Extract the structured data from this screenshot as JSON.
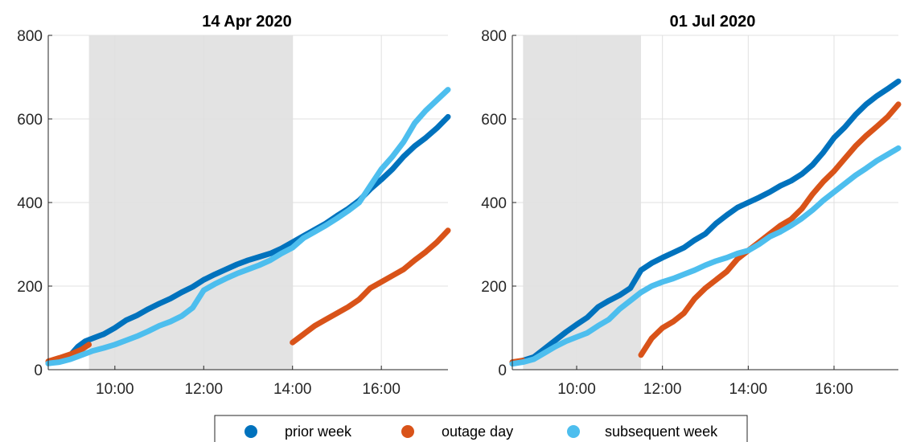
{
  "chart_data": [
    {
      "type": "line",
      "title": "14 Apr 2020",
      "xlabel": "",
      "ylabel": "",
      "x_unit": "time of day",
      "xlim": [
        "08:30",
        "17:30"
      ],
      "ylim": [
        0,
        800
      ],
      "xticks": [
        "10:00",
        "12:00",
        "14:00",
        "16:00"
      ],
      "yticks": [
        0,
        200,
        400,
        600,
        800
      ],
      "grid": true,
      "shaded_interval": [
        "09:25",
        "14:00"
      ],
      "series": [
        {
          "name": "prior week",
          "color": "#0072BD",
          "points": [
            [
              "08:30",
              15
            ],
            [
              "08:45",
              20
            ],
            [
              "09:00",
              35
            ],
            [
              "09:10",
              55
            ],
            [
              "09:20",
              68
            ],
            [
              "09:30",
              75
            ],
            [
              "09:45",
              85
            ],
            [
              "10:00",
              100
            ],
            [
              "10:15",
              118
            ],
            [
              "10:30",
              130
            ],
            [
              "10:45",
              145
            ],
            [
              "11:00",
              158
            ],
            [
              "11:15",
              170
            ],
            [
              "11:30",
              185
            ],
            [
              "11:45",
              198
            ],
            [
              "12:00",
              215
            ],
            [
              "12:15",
              228
            ],
            [
              "12:30",
              240
            ],
            [
              "12:45",
              252
            ],
            [
              "13:00",
              262
            ],
            [
              "13:15",
              270
            ],
            [
              "13:30",
              278
            ],
            [
              "13:45",
              290
            ],
            [
              "14:00",
              305
            ],
            [
              "14:15",
              320
            ],
            [
              "14:30",
              335
            ],
            [
              "14:45",
              350
            ],
            [
              "15:00",
              368
            ],
            [
              "15:15",
              385
            ],
            [
              "15:30",
              405
            ],
            [
              "15:45",
              432
            ],
            [
              "16:00",
              455
            ],
            [
              "16:15",
              480
            ],
            [
              "16:30",
              510
            ],
            [
              "16:45",
              535
            ],
            [
              "17:00",
              555
            ],
            [
              "17:15",
              578
            ],
            [
              "17:30",
              605
            ]
          ]
        },
        {
          "name": "outage day",
          "color": "#D95319",
          "segments": [
            [
              [
                "08:30",
                20
              ],
              [
                "08:45",
                28
              ],
              [
                "09:00",
                37
              ],
              [
                "09:15",
                48
              ],
              [
                "09:25",
                60
              ]
            ],
            [
              [
                "14:00",
                65
              ],
              [
                "14:15",
                85
              ],
              [
                "14:30",
                105
              ],
              [
                "14:45",
                120
              ],
              [
                "15:00",
                135
              ],
              [
                "15:15",
                150
              ],
              [
                "15:30",
                168
              ],
              [
                "15:45",
                195
              ],
              [
                "16:00",
                210
              ],
              [
                "16:15",
                225
              ],
              [
                "16:30",
                240
              ],
              [
                "16:45",
                262
              ],
              [
                "17:00",
                282
              ],
              [
                "17:15",
                305
              ],
              [
                "17:30",
                333
              ]
            ]
          ]
        },
        {
          "name": "subsequent week",
          "color": "#4DBEEE",
          "points": [
            [
              "08:30",
              15
            ],
            [
              "08:45",
              18
            ],
            [
              "09:00",
              25
            ],
            [
              "09:15",
              35
            ],
            [
              "09:30",
              45
            ],
            [
              "09:45",
              52
            ],
            [
              "10:00",
              60
            ],
            [
              "10:15",
              70
            ],
            [
              "10:30",
              80
            ],
            [
              "10:45",
              92
            ],
            [
              "11:00",
              105
            ],
            [
              "11:15",
              115
            ],
            [
              "11:30",
              128
            ],
            [
              "11:45",
              148
            ],
            [
              "12:00",
              190
            ],
            [
              "12:15",
              205
            ],
            [
              "12:30",
              218
            ],
            [
              "12:45",
              230
            ],
            [
              "13:00",
              240
            ],
            [
              "13:15",
              250
            ],
            [
              "13:30",
              262
            ],
            [
              "13:45",
              278
            ],
            [
              "14:00",
              292
            ],
            [
              "14:15",
              315
            ],
            [
              "14:30",
              330
            ],
            [
              "14:45",
              345
            ],
            [
              "15:00",
              362
            ],
            [
              "15:15",
              380
            ],
            [
              "15:30",
              400
            ],
            [
              "15:45",
              440
            ],
            [
              "16:00",
              480
            ],
            [
              "16:15",
              510
            ],
            [
              "16:30",
              545
            ],
            [
              "16:45",
              590
            ],
            [
              "17:00",
              620
            ],
            [
              "17:15",
              645
            ],
            [
              "17:30",
              670
            ]
          ]
        }
      ]
    },
    {
      "type": "line",
      "title": "01 Jul 2020",
      "xlabel": "",
      "ylabel": "",
      "x_unit": "time of day",
      "xlim": [
        "08:30",
        "17:30"
      ],
      "ylim": [
        0,
        800
      ],
      "xticks": [
        "10:00",
        "12:00",
        "14:00",
        "16:00"
      ],
      "yticks": [
        0,
        200,
        400,
        600,
        800
      ],
      "grid": true,
      "shaded_interval": [
        "08:45",
        "11:30"
      ],
      "series": [
        {
          "name": "prior week",
          "color": "#0072BD",
          "points": [
            [
              "08:30",
              15
            ],
            [
              "08:45",
              22
            ],
            [
              "09:00",
              30
            ],
            [
              "09:15",
              50
            ],
            [
              "09:30",
              70
            ],
            [
              "09:45",
              90
            ],
            [
              "10:00",
              108
            ],
            [
              "10:15",
              125
            ],
            [
              "10:30",
              150
            ],
            [
              "10:45",
              165
            ],
            [
              "11:00",
              178
            ],
            [
              "11:15",
              195
            ],
            [
              "11:30",
              238
            ],
            [
              "11:45",
              255
            ],
            [
              "12:00",
              268
            ],
            [
              "12:15",
              280
            ],
            [
              "12:30",
              292
            ],
            [
              "12:45",
              310
            ],
            [
              "13:00",
              325
            ],
            [
              "13:15",
              350
            ],
            [
              "13:30",
              370
            ],
            [
              "13:45",
              388
            ],
            [
              "14:00",
              400
            ],
            [
              "14:15",
              412
            ],
            [
              "14:30",
              425
            ],
            [
              "14:45",
              440
            ],
            [
              "15:00",
              452
            ],
            [
              "15:15",
              468
            ],
            [
              "15:30",
              490
            ],
            [
              "15:45",
              520
            ],
            [
              "16:00",
              555
            ],
            [
              "16:15",
              580
            ],
            [
              "16:30",
              610
            ],
            [
              "16:45",
              635
            ],
            [
              "17:00",
              655
            ],
            [
              "17:15",
              672
            ],
            [
              "17:30",
              690
            ]
          ]
        },
        {
          "name": "outage day",
          "color": "#D95319",
          "segments": [
            [
              [
                "08:30",
                18
              ],
              [
                "08:45",
                22
              ]
            ],
            [
              [
                "11:30",
                35
              ],
              [
                "11:45",
                75
              ],
              [
                "12:00",
                100
              ],
              [
                "12:15",
                115
              ],
              [
                "12:30",
                135
              ],
              [
                "12:45",
                170
              ],
              [
                "13:00",
                195
              ],
              [
                "13:15",
                215
              ],
              [
                "13:30",
                235
              ],
              [
                "13:45",
                265
              ],
              [
                "14:00",
                285
              ],
              [
                "14:15",
                305
              ],
              [
                "14:30",
                325
              ],
              [
                "14:45",
                345
              ],
              [
                "15:00",
                360
              ],
              [
                "15:15",
                385
              ],
              [
                "15:30",
                420
              ],
              [
                "15:45",
                450
              ],
              [
                "16:00",
                475
              ],
              [
                "16:15",
                505
              ],
              [
                "16:30",
                535
              ],
              [
                "16:45",
                560
              ],
              [
                "17:00",
                582
              ],
              [
                "17:15",
                605
              ],
              [
                "17:30",
                635
              ]
            ]
          ]
        },
        {
          "name": "subsequent week",
          "color": "#4DBEEE",
          "points": [
            [
              "08:30",
              14
            ],
            [
              "08:45",
              18
            ],
            [
              "09:00",
              25
            ],
            [
              "09:15",
              40
            ],
            [
              "09:30",
              55
            ],
            [
              "09:45",
              68
            ],
            [
              "10:00",
              78
            ],
            [
              "10:15",
              88
            ],
            [
              "10:30",
              105
            ],
            [
              "10:45",
              120
            ],
            [
              "11:00",
              145
            ],
            [
              "11:15",
              165
            ],
            [
              "11:30",
              185
            ],
            [
              "11:45",
              200
            ],
            [
              "12:00",
              210
            ],
            [
              "12:15",
              218
            ],
            [
              "12:30",
              228
            ],
            [
              "12:45",
              238
            ],
            [
              "13:00",
              250
            ],
            [
              "13:15",
              260
            ],
            [
              "13:30",
              268
            ],
            [
              "13:45",
              278
            ],
            [
              "14:00",
              285
            ],
            [
              "14:15",
              300
            ],
            [
              "14:30",
              318
            ],
            [
              "14:45",
              330
            ],
            [
              "15:00",
              345
            ],
            [
              "15:15",
              362
            ],
            [
              "15:30",
              382
            ],
            [
              "15:45",
              405
            ],
            [
              "16:00",
              425
            ],
            [
              "16:15",
              445
            ],
            [
              "16:30",
              465
            ],
            [
              "16:45",
              482
            ],
            [
              "17:00",
              500
            ],
            [
              "17:15",
              515
            ],
            [
              "17:30",
              530
            ]
          ]
        }
      ]
    }
  ],
  "legend": {
    "placement": "bottom-center",
    "items": [
      {
        "label": "prior week",
        "color": "#0072BD"
      },
      {
        "label": "outage day",
        "color": "#D95319"
      },
      {
        "label": "subsequent week",
        "color": "#4DBEEE"
      }
    ]
  }
}
